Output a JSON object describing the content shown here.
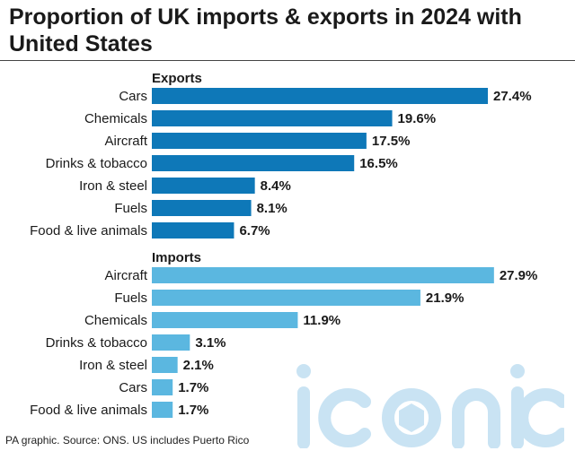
{
  "title": "Proportion of UK imports & exports in 2024 with United States",
  "source": "PA graphic. Source: ONS. US includes Puerto Rico",
  "watermark": "iconic",
  "colors": {
    "exports": "#0e78b8",
    "imports": "#5bb7e0",
    "watermark": "#c9e3f3"
  },
  "chart_data": [
    {
      "type": "bar",
      "orientation": "horizontal",
      "title": "Exports",
      "categories": [
        "Cars",
        "Chemicals",
        "Aircraft",
        "Drinks & tobacco",
        "Iron & steel",
        "Fuels",
        "Food & live animals"
      ],
      "values": [
        27.4,
        19.6,
        17.5,
        16.5,
        8.4,
        8.1,
        6.7
      ],
      "labels": [
        "27.4%",
        "19.6%",
        "17.5%",
        "16.5%",
        "8.4%",
        "8.1%",
        "6.7%"
      ],
      "unit": "%"
    },
    {
      "type": "bar",
      "orientation": "horizontal",
      "title": "Imports",
      "categories": [
        "Aircraft",
        "Fuels",
        "Chemicals",
        "Drinks & tobacco",
        "Iron & steel",
        "Cars",
        "Food & live animals"
      ],
      "values": [
        27.9,
        21.9,
        11.9,
        3.1,
        2.1,
        1.7,
        1.7
      ],
      "labels": [
        "27.9%",
        "21.9%",
        "11.9%",
        "3.1%",
        "2.1%",
        "1.7%",
        "1.7%"
      ],
      "unit": "%"
    }
  ]
}
